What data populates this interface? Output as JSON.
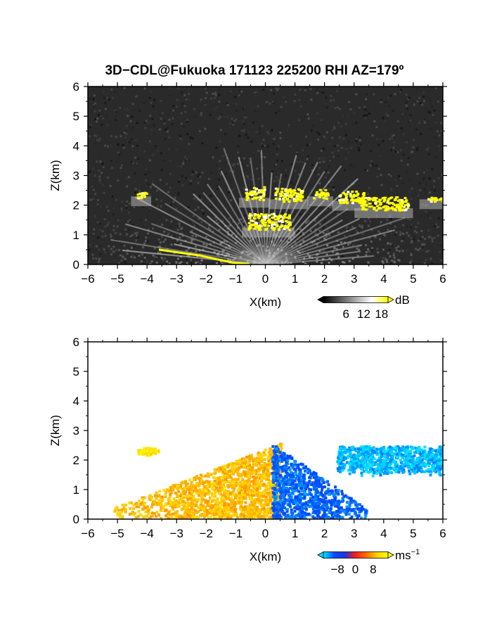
{
  "title": "3D−CDL@Fukuoka 171123 225200 RHI AZ=179º",
  "chart_data": [
    {
      "type": "heatmap",
      "panel": "reflectivity",
      "xlabel": "X(km)",
      "ylabel": "Z(km)",
      "xlim": [
        -6,
        6
      ],
      "ylim": [
        0,
        6
      ],
      "xticks": [
        "−6",
        "−5",
        "−4",
        "−3",
        "−2",
        "−1",
        "0",
        "1",
        "2",
        "3",
        "4",
        "5",
        "6"
      ],
      "yticks": [
        "0",
        "1",
        "2",
        "3",
        "4",
        "5",
        "6"
      ],
      "background": "#2a2a2a",
      "colorbar": {
        "unit": "dB",
        "ticks": [
          "6",
          "12",
          "18"
        ],
        "colors": [
          "#000000",
          "#555555",
          "#aaaaaa",
          "#ffffff",
          "#ffff00"
        ]
      },
      "features": [
        {
          "name": "cloud-layer-1",
          "x": [
            -0.7,
            -0.05
          ],
          "z": [
            2.2,
            2.65
          ],
          "level": "high"
        },
        {
          "name": "cloud-layer-2",
          "x": [
            0.3,
            1.25
          ],
          "z": [
            2.15,
            2.6
          ],
          "level": "high"
        },
        {
          "name": "cloud-layer-3",
          "x": [
            1.6,
            2.1
          ],
          "z": [
            2.25,
            2.55
          ],
          "level": "high"
        },
        {
          "name": "cloud-layer-4",
          "x": [
            2.45,
            3.3
          ],
          "z": [
            2.1,
            2.5
          ],
          "level": "high"
        },
        {
          "name": "cloud-layer-5",
          "x": [
            3.2,
            4.8
          ],
          "z": [
            1.85,
            2.3
          ],
          "level": "high"
        },
        {
          "name": "cloud-layer-6",
          "x": [
            5.4,
            6.0
          ],
          "z": [
            2.15,
            2.3
          ],
          "level": "high"
        },
        {
          "name": "cloud-lower",
          "x": [
            -0.6,
            0.8
          ],
          "z": [
            1.2,
            1.75
          ],
          "level": "high"
        },
        {
          "name": "isolated-echo",
          "x": [
            -4.35,
            -4.05
          ],
          "z": [
            2.25,
            2.45
          ],
          "level": "high"
        },
        {
          "name": "ground-clutter",
          "x": [
            -3.6,
            -0.6
          ],
          "z": [
            0.0,
            0.5
          ],
          "level": "high"
        }
      ]
    },
    {
      "type": "heatmap",
      "panel": "doppler-velocity",
      "xlabel": "X(km)",
      "ylabel": "Z(km)",
      "xlim": [
        -6,
        6
      ],
      "ylim": [
        0,
        6
      ],
      "xticks": [
        "−6",
        "−5",
        "−4",
        "−3",
        "−2",
        "−1",
        "0",
        "1",
        "2",
        "3",
        "4",
        "5",
        "6"
      ],
      "yticks": [
        "0",
        "1",
        "2",
        "3",
        "4",
        "5",
        "6"
      ],
      "background": "#ffffff",
      "colorbar": {
        "unit": "ms",
        "unit_exp": "−1",
        "ticks": [
          "−8",
          "0",
          "8"
        ],
        "colors": [
          "#00e5ff",
          "#0050ff",
          "#1e32dc",
          "#ff1e14",
          "#ff6e00",
          "#ffd200",
          "#ffff00"
        ]
      },
      "features": [
        {
          "name": "approaching-flow",
          "x": [
            -5.2,
            0.5
          ],
          "z": [
            0.05,
            2.6
          ],
          "velocity": 6
        },
        {
          "name": "receding-flow",
          "x": [
            0.2,
            3.4
          ],
          "z": [
            0.05,
            2.6
          ],
          "velocity": -7
        },
        {
          "name": "upper-cloud-flow",
          "x": [
            2.4,
            6.0
          ],
          "z": [
            1.4,
            2.6
          ],
          "velocity": -9
        },
        {
          "name": "isolated-echo",
          "x": [
            -4.35,
            -3.65
          ],
          "z": [
            2.2,
            2.45
          ],
          "velocity": 8
        }
      ]
    }
  ]
}
